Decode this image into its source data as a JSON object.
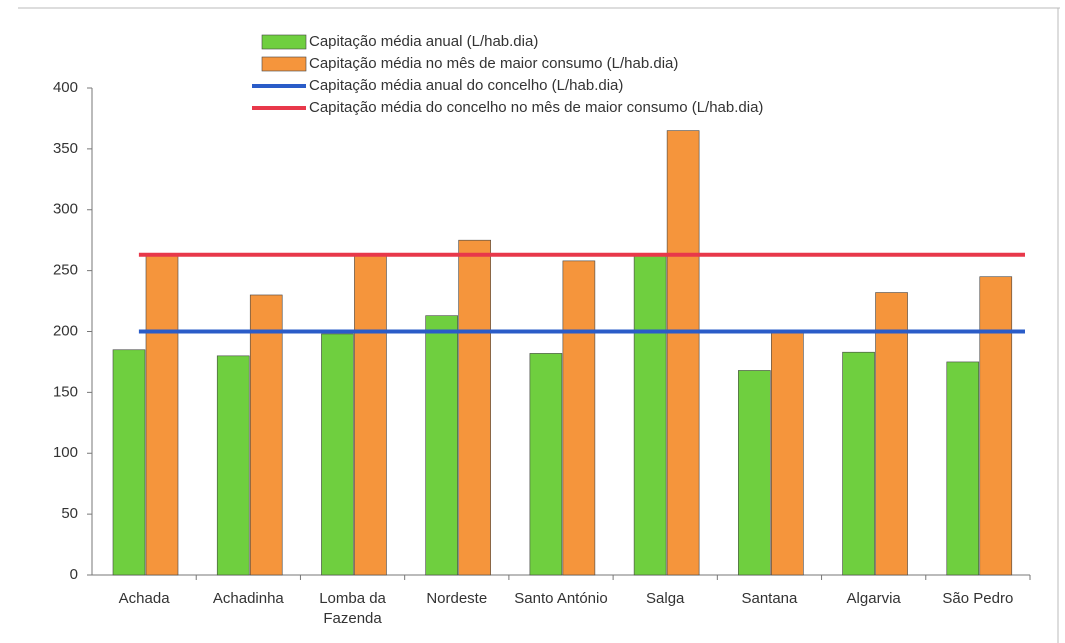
{
  "chart_data": {
    "type": "bar",
    "categories": [
      "Achada",
      "Achadinha",
      "Lomba da Fazenda",
      "Nordeste",
      "Santo António",
      "Salga",
      "Santana",
      "Algarvia",
      "São Pedro"
    ],
    "series": [
      {
        "name": "Capitação média anual (L/hab.dia)",
        "color": "#6fcf3f",
        "values": [
          185,
          180,
          198,
          213,
          182,
          262,
          168,
          183,
          175
        ]
      },
      {
        "name": "Capitação média no mês de maior consumo (L/hab.dia)",
        "color": "#f5953c",
        "values": [
          262,
          230,
          262,
          275,
          258,
          365,
          200,
          232,
          245
        ]
      },
      {
        "name": "Capitação média anual do concelho (L/hab.dia)",
        "color": "#2a5cc8",
        "type": "line",
        "values": [
          200,
          200,
          200,
          200,
          200,
          200,
          200,
          200,
          200
        ]
      },
      {
        "name": "Capitação média do concelho no mês de maior consumo (L/hab.dia)",
        "color": "#e8384a",
        "type": "line",
        "values": [
          263,
          263,
          263,
          263,
          263,
          263,
          263,
          263,
          263
        ]
      }
    ],
    "ylim": [
      0,
      400
    ],
    "yticks": [
      0,
      50,
      100,
      150,
      200,
      250,
      300,
      350,
      400
    ]
  }
}
